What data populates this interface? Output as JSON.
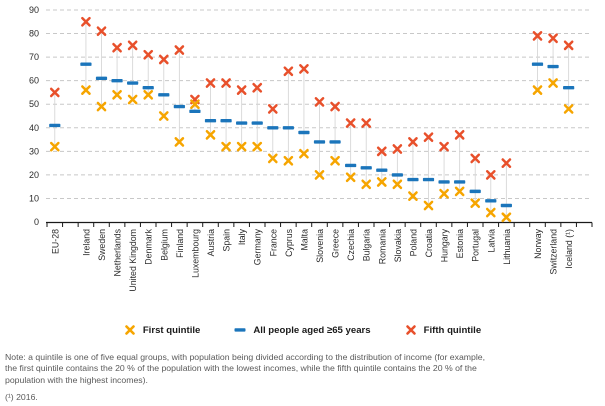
{
  "chart_data": {
    "type": "scatter",
    "title": "",
    "xlabel": "",
    "ylabel": "",
    "ylim": [
      0,
      90
    ],
    "y_ticks": [
      0,
      10,
      20,
      30,
      40,
      50,
      60,
      70,
      80,
      90
    ],
    "grid": "horizontal-dashed",
    "legend_position": "bottom",
    "categories": [
      "EU-28",
      "",
      "Ireland",
      "Sweden",
      "Netherlands",
      "United Kingdom",
      "Denmark",
      "Belgium",
      "Finland",
      "Luxembourg",
      "Austria",
      "Spain",
      "Italy",
      "Germany",
      "France",
      "Cyprus",
      "Malta",
      "Slovenia",
      "Greece",
      "Czechia",
      "Bulgaria",
      "Romania",
      "Slovakia",
      "Poland",
      "Croatia",
      "Hungary",
      "Estonia",
      "Portugal",
      "Latvia",
      "Lithuania",
      "",
      "Norway",
      "Switzerland",
      "Iceland (¹)"
    ],
    "series": [
      {
        "name": "First quintile",
        "marker": "x",
        "color": "#F6A500",
        "values": [
          32,
          null,
          56,
          49,
          54,
          52,
          54,
          45,
          34,
          50,
          37,
          32,
          32,
          32,
          27,
          26,
          29,
          20,
          26,
          19,
          16,
          17,
          16,
          11,
          7,
          12,
          13,
          8,
          4,
          2,
          null,
          56,
          59,
          48
        ]
      },
      {
        "name": "All people aged ≥65 years",
        "marker": "dash",
        "color": "#1B75BB",
        "values": [
          41,
          null,
          67,
          61,
          60,
          59,
          57,
          54,
          49,
          47,
          43,
          43,
          42,
          42,
          40,
          40,
          38,
          34,
          34,
          24,
          23,
          22,
          20,
          18,
          18,
          17,
          17,
          13,
          9,
          7,
          null,
          67,
          66,
          57
        ]
      },
      {
        "name": "Fifth quintile",
        "marker": "x",
        "color": "#E8502B",
        "values": [
          55,
          null,
          85,
          81,
          74,
          75,
          71,
          69,
          73,
          52,
          59,
          59,
          56,
          57,
          48,
          64,
          65,
          51,
          49,
          42,
          42,
          30,
          31,
          34,
          36,
          32,
          37,
          27,
          20,
          25,
          null,
          79,
          78,
          75
        ]
      }
    ]
  },
  "legend": {
    "first_label": "First quintile",
    "all_label": "All people aged ≥65 years",
    "fifth_label": "Fifth quintile"
  },
  "note": {
    "text": "Note: a quintile is one of five equal groups, with population being divided according to the distribution of income (for example, the first quintile contains the 20 % of the population with the lowest incomes, while the fifth quintile contains the 20 % of the population with the highest incomes).",
    "footnote": "(¹)  2016."
  }
}
